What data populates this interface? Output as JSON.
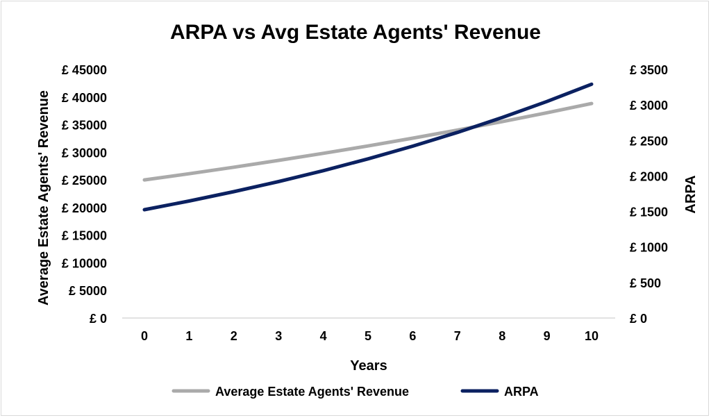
{
  "chart_data": {
    "type": "line",
    "title": "ARPA vs Avg Estate Agents' Revenue",
    "xlabel": "Years",
    "ylabel_left": "Average Estate Agents' Revenue",
    "ylabel_right": "ARPA",
    "x": [
      0,
      1,
      2,
      3,
      4,
      5,
      6,
      7,
      8,
      9,
      10
    ],
    "ylim_left": [
      0,
      45000
    ],
    "ylim_right": [
      0,
      3500
    ],
    "yticks_left": [
      "£ 0",
      "£ 5000",
      "£ 10000",
      "£ 15000",
      "£ 20000",
      "£ 25000",
      "£ 30000",
      "£ 35000",
      "£ 40000",
      "£ 45000"
    ],
    "yticks_right": [
      "£ 0",
      "£ 500",
      "£ 1000",
      "£ 1500",
      "£ 2000",
      "£ 2500",
      "£ 3000",
      "£ 3500"
    ],
    "grid": false,
    "legend_position": "bottom",
    "series": [
      {
        "name": "Average Estate Agents' Revenue",
        "axis": "left",
        "color": "#aaaaaa",
        "values": [
          25000,
          26125,
          27301,
          28530,
          29812,
          31154,
          32557,
          34021,
          35552,
          37152,
          38824
        ]
      },
      {
        "name": "ARPA",
        "axis": "right",
        "color": "#0b2161",
        "values": [
          1525,
          1647,
          1779,
          1921,
          2075,
          2241,
          2420,
          2613,
          2823,
          3048,
          3292
        ]
      }
    ]
  }
}
